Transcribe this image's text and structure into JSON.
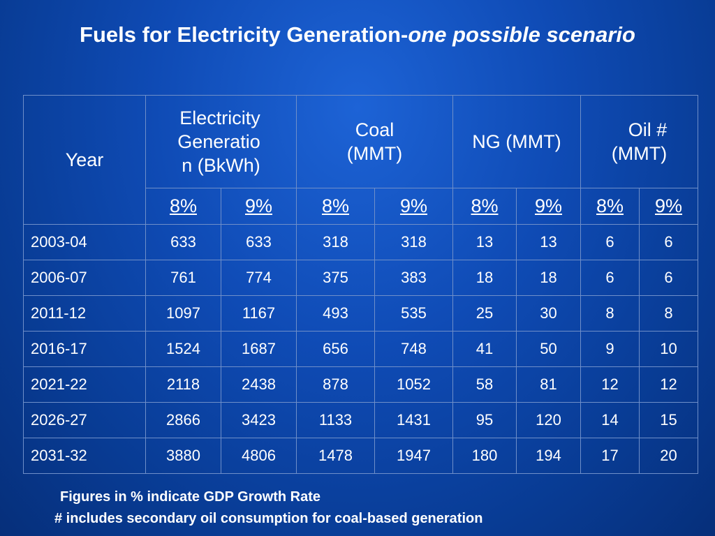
{
  "title": {
    "main": "Fuels for Electricity Generation-",
    "italic": "one possible scenario"
  },
  "table": {
    "headers": {
      "year": "Year",
      "electricity": "Electricity\nGeneratio\nn (BkWh)",
      "coal": "Coal\n(MMT)",
      "ng": "NG (MMT)",
      "oil": "Oil #\n(MMT)"
    },
    "subheaders": [
      "8%",
      "9%",
      "8%",
      "9%",
      "8%",
      "9%",
      "8%",
      "9%"
    ],
    "rows": [
      {
        "year": "2003-04",
        "values": [
          "633",
          "633",
          "318",
          "318",
          "13",
          "13",
          "6",
          "6"
        ]
      },
      {
        "year": "2006-07",
        "values": [
          "761",
          "774",
          "375",
          "383",
          "18",
          "18",
          "6",
          "6"
        ]
      },
      {
        "year": "2011-12",
        "values": [
          "1097",
          "1167",
          "493",
          "535",
          "25",
          "30",
          "8",
          "8"
        ]
      },
      {
        "year": "2016-17",
        "values": [
          "1524",
          "1687",
          "656",
          "748",
          "41",
          "50",
          "9",
          "10"
        ]
      },
      {
        "year": "2021-22",
        "values": [
          "2118",
          "2438",
          "878",
          "1052",
          "58",
          "81",
          "12",
          "12"
        ]
      },
      {
        "year": "2026-27",
        "values": [
          "2866",
          "3423",
          "1133",
          "1431",
          "95",
          "120",
          "14",
          "15"
        ]
      },
      {
        "year": "2031-32",
        "values": [
          "3880",
          "4806",
          "1478",
          "1947",
          "180",
          "194",
          "17",
          "20"
        ]
      }
    ]
  },
  "notes": {
    "line1": "Figures in % indicate GDP Growth Rate",
    "line2": "# includes secondary oil consumption for coal-based generation"
  },
  "colors": {
    "background": "#0f4bb5",
    "grid": "#6f8fc9",
    "text": "#ffffff"
  }
}
